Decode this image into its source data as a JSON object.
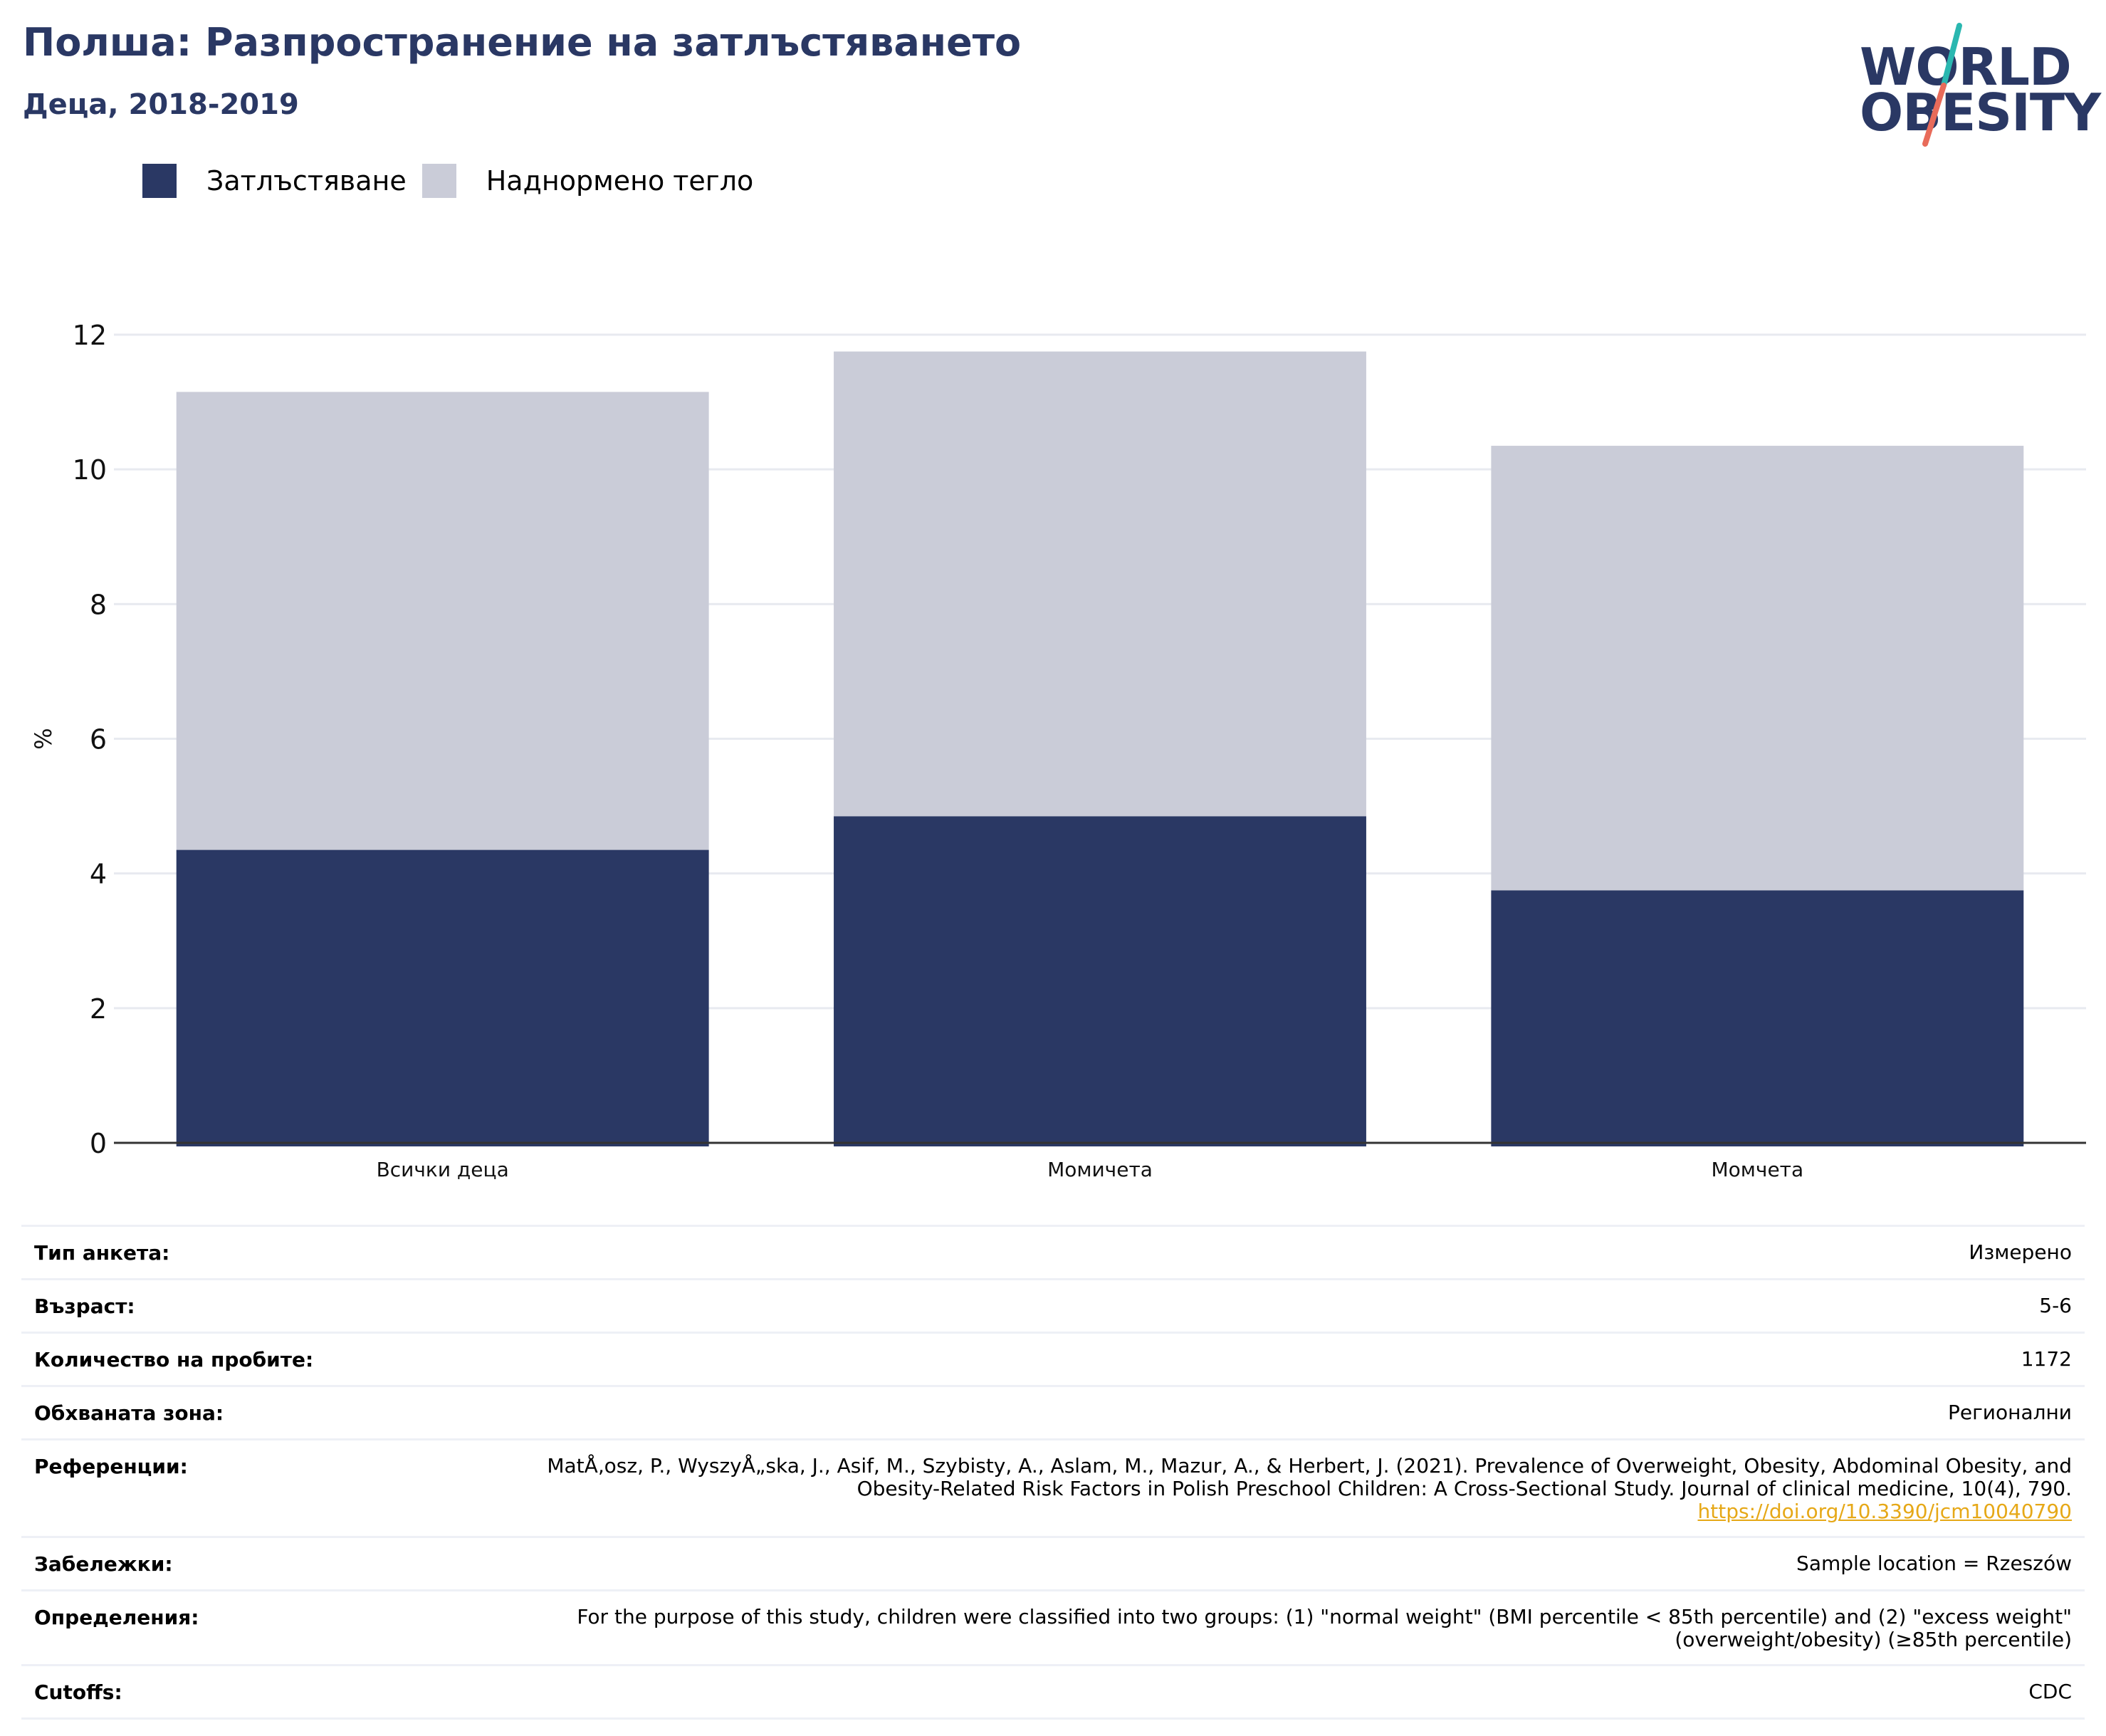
{
  "header": {
    "title": "Полша: Разпространение на затлъстяването",
    "subtitle": "Деца, 2018-2019"
  },
  "logo": {
    "line1": "WORLD",
    "line2": "OBESITY",
    "accent_colors": [
      "#2ab7b0",
      "#e86b5a"
    ]
  },
  "colors": {
    "obesity": "#2a3864",
    "overweight": "#caccd8",
    "grid": "#e8eaf0",
    "axis": "#333333"
  },
  "chart_data": {
    "type": "bar",
    "stacked": true,
    "categories": [
      "Всички деца",
      "Момичета",
      "Момчета"
    ],
    "series": [
      {
        "name": "Затлъстяване",
        "values": [
          4.35,
          4.85,
          3.75
        ]
      },
      {
        "name": "Наднормено тегло",
        "values": [
          6.8,
          6.9,
          6.6
        ]
      }
    ],
    "ylabel": "%",
    "ylim": [
      0,
      12
    ],
    "yticks": [
      0,
      2,
      4,
      6,
      8,
      10,
      12
    ],
    "grid": true,
    "legend": "top-left"
  },
  "info": [
    {
      "label": "Тип анкета:",
      "value": "Измерено"
    },
    {
      "label": "Възраст:",
      "value": "5-6"
    },
    {
      "label": "Количество на пробите:",
      "value": "1172"
    },
    {
      "label": "Обхваната зона:",
      "value": "Регионални"
    },
    {
      "label": "Референции:",
      "value": "MatÅ‚osz, P., WyszyÅ„ska, J., Asif, M., Szybisty, A., Aslam, M., Mazur, A., & Herbert, J. (2021). Prevalence of Overweight, Obesity, Abdominal Obesity, and Obesity-Related Risk Factors in Polish Preschool Children: A Cross-Sectional Study. Journal of clinical medicine, 10(4), 790.",
      "link": "https://doi.org/10.3390/jcm10040790"
    },
    {
      "label": "Забележки:",
      "value": "Sample location = Rzeszów"
    },
    {
      "label": "Определения:",
      "value": "For the purpose of this study, children were classified into two groups: (1) \"normal weight\" (BMI percentile < 85th percentile) and (2) \"excess weight\" (overweight/obesity) (≥85th percentile)"
    },
    {
      "label": "Cutoffs:",
      "value": "CDC"
    }
  ]
}
